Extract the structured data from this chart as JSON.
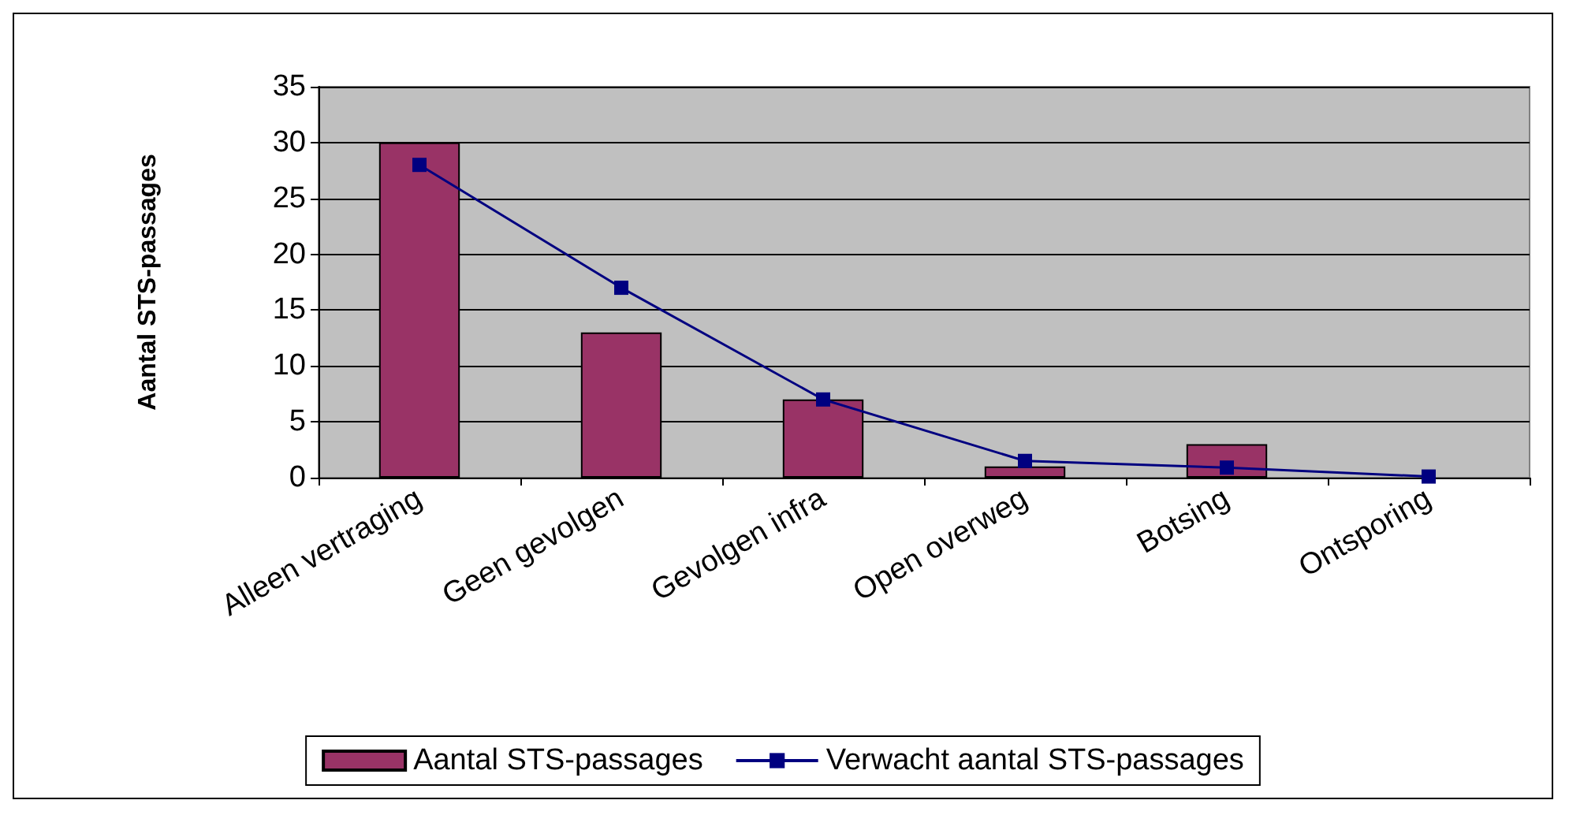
{
  "chart_data": {
    "type": "bar",
    "ylabel": "Aantal STS-passages",
    "categories": [
      "Alleen vertraging",
      "Geen gevolgen",
      "Gevolgen infra",
      "Open overweg",
      "Botsing",
      "Ontsporing"
    ],
    "series": [
      {
        "name": "Aantal STS-passages",
        "color": "#993366",
        "values": [
          30,
          13,
          7,
          1,
          3,
          0
        ]
      },
      {
        "name": "Verwacht aantal STS-passages",
        "type": "line",
        "color": "#000080",
        "marker": "square",
        "values": [
          28,
          17,
          7,
          1.5,
          0.9,
          0.1
        ]
      }
    ],
    "ylim": [
      0,
      35
    ],
    "yticks": [
      0,
      5,
      10,
      15,
      20,
      25,
      30,
      35
    ],
    "grid": "y",
    "legend": "bottom"
  }
}
